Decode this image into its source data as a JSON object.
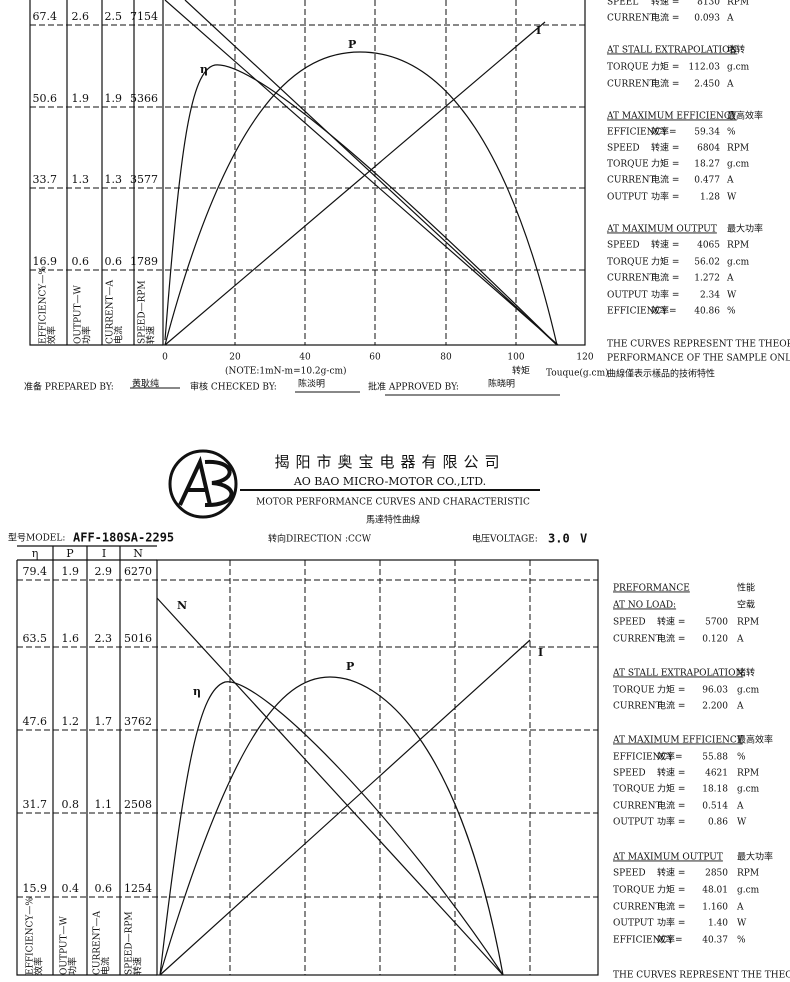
{
  "top_sheet": {
    "rows": [
      [
        "67.4",
        "2.6",
        "2.5",
        "7154"
      ],
      [
        "50.6",
        "1.9",
        "1.9",
        "5366"
      ],
      [
        "33.7",
        "1.3",
        "1.3",
        "3577"
      ],
      [
        "16.9",
        "0.6",
        "0.6",
        "1789"
      ]
    ],
    "axis_labels": [
      {
        "en": "EFFICIENCY—%",
        "cn": "效率"
      },
      {
        "en": "OUTPUT—W",
        "cn": "功率"
      },
      {
        "en": "CURRENT—A",
        "cn": "电流"
      },
      {
        "en": "SPEED—RPM",
        "cn": "转速"
      }
    ],
    "x_ticks": [
      "0",
      "20",
      "40",
      "60",
      "80",
      "100",
      "120"
    ],
    "note": "(NOTE:1mN-m=10.2g-cm)",
    "x_label_cn": "转矩",
    "x_label_en": "Touque(g.cm)",
    "curve_labels": [
      "η",
      "P",
      "I"
    ],
    "signatures": [
      {
        "role": "准备 PREPARED BY:",
        "name": "黄耿纯"
      },
      {
        "role": "审核 CHECKED BY:",
        "name": "陈淡明"
      },
      {
        "role": "批准 APPROVED BY:",
        "name": "陈晓明"
      }
    ],
    "panel": [
      {
        "label": "SPEEL",
        "cn": "转速 =",
        "value": "8130",
        "unit": "RPM"
      },
      {
        "label": "CURRENT",
        "cn": "电流 =",
        "value": "0.093",
        "unit": "A"
      },
      {
        "heading": "AT STALL EXTRAPOLATION",
        "heading_cn": "堵转"
      },
      {
        "label": "TORQUE",
        "cn": "力矩 =",
        "value": "112.03",
        "unit": "g.cm"
      },
      {
        "label": "CURRENT",
        "cn": "电流 =",
        "value": "2.450",
        "unit": "A"
      },
      {
        "heading": "AT MAXIMUM EFFICIENCY",
        "heading_cn": "最高效率"
      },
      {
        "label": "EFFICIENCY",
        "cn": "效率=",
        "value": "59.34",
        "unit": "%"
      },
      {
        "label": "SPEED",
        "cn": "转速 =",
        "value": "6804",
        "unit": "RPM"
      },
      {
        "label": "TORQUE",
        "cn": "力矩 =",
        "value": "18.27",
        "unit": "g.cm"
      },
      {
        "label": "CURRENT",
        "cn": "电流 =",
        "value": "0.477",
        "unit": "A"
      },
      {
        "label": "OUTPUT",
        "cn": "功率 =",
        "value": "1.28",
        "unit": "W"
      },
      {
        "heading": "AT MAXIMUM OUTPUT",
        "heading_cn": "最大功率"
      },
      {
        "label": "SPEED",
        "cn": "转速 =",
        "value": "4065",
        "unit": "RPM"
      },
      {
        "label": "TORQUE",
        "cn": "力矩 =",
        "value": "56.02",
        "unit": "g.cm"
      },
      {
        "label": "CURRENT",
        "cn": "电流 =",
        "value": "1.272",
        "unit": "A"
      },
      {
        "label": "OUTPUT",
        "cn": "功率 =",
        "value": "2.34",
        "unit": "W"
      },
      {
        "label": "EFFICIENCY",
        "cn": "效率=",
        "value": "40.86",
        "unit": "%"
      }
    ],
    "footnote": [
      "THE CURVES REPRESENT THE THEORETICAL",
      "PERFORMANCE OF THE SAMPLE ONLY.",
      "曲線僅表示樣品的技術特性"
    ]
  },
  "bottom_sheet": {
    "company_cn": "揭阳市奥宝电器有限公司",
    "company_en": "AO BAO MICRO-MOTOR CO.,LTD.",
    "doc_title": "MOTOR PERFORMANCE CURVES AND CHARACTERISTIC",
    "doc_title_cn": "馬達特性曲線",
    "model_label": "型号MODEL:",
    "model": "AFF-180SA-2295",
    "direction_label": "转向DIRECTION",
    "direction": ":CCW",
    "voltage_label": "电压VOLTAGE:",
    "voltage": "3.0",
    "voltage_unit": "V",
    "column_headers": [
      "η",
      "P",
      "I",
      "N"
    ],
    "rows": [
      [
        "79.4",
        "1.9",
        "2.9",
        "6270"
      ],
      [
        "63.5",
        "1.6",
        "2.3",
        "5016"
      ],
      [
        "47.6",
        "1.2",
        "1.7",
        "3762"
      ],
      [
        "31.7",
        "0.8",
        "1.1",
        "2508"
      ],
      [
        "15.9",
        "0.4",
        "0.6",
        "1254"
      ]
    ],
    "axis_labels": [
      {
        "en": "EFFICIENCY—%",
        "cn": "效率"
      },
      {
        "en": "OUTPUT—W",
        "cn": "功率"
      },
      {
        "en": "CURRENT—A",
        "cn": "电流"
      },
      {
        "en": "SPEED—RPM",
        "cn": "转速"
      }
    ],
    "curve_labels": [
      "N",
      "η",
      "P",
      "I"
    ],
    "panel": [
      {
        "heading": "PREFORMANCE",
        "heading_cn": "性能"
      },
      {
        "heading": "AT NO LOAD:",
        "heading_cn": "空载"
      },
      {
        "label": "SPEED",
        "cn": "转速 =",
        "value": "5700",
        "unit": "RPM"
      },
      {
        "label": "CURRENT",
        "cn": "电流 =",
        "value": "0.120",
        "unit": "A"
      },
      {
        "heading": "AT STALL EXTRAPOLATION",
        "heading_cn": "堵转"
      },
      {
        "label": "TORQUE",
        "cn": "力矩 =",
        "value": "96.03",
        "unit": "g.cm"
      },
      {
        "label": "CURRENT",
        "cn": "电流 =",
        "value": "2.200",
        "unit": "A"
      },
      {
        "heading": "AT MAXIMUM EFFICIENCY",
        "heading_cn": "最高效率"
      },
      {
        "label": "EFFICIENCY",
        "cn": "效率=",
        "value": "55.88",
        "unit": "%"
      },
      {
        "label": "SPEED",
        "cn": "转速 =",
        "value": "4621",
        "unit": "RPM"
      },
      {
        "label": "TORQUE",
        "cn": "力矩 =",
        "value": "18.18",
        "unit": "g.cm"
      },
      {
        "label": "CURRENT",
        "cn": "电流 =",
        "value": "0.514",
        "unit": "A"
      },
      {
        "label": "OUTPUT",
        "cn": "功率 =",
        "value": "0.86",
        "unit": "W"
      },
      {
        "heading": "AT MAXIMUM OUTPUT",
        "heading_cn": "最大功率"
      },
      {
        "label": "SPEED",
        "cn": "转速 =",
        "value": "2850",
        "unit": "RPM"
      },
      {
        "label": "TORQUE",
        "cn": "力矩 =",
        "value": "48.01",
        "unit": "g.cm"
      },
      {
        "label": "CURRENT",
        "cn": "电流 =",
        "value": "1.160",
        "unit": "A"
      },
      {
        "label": "OUTPUT",
        "cn": "功率 =",
        "value": "1.40",
        "unit": "W"
      },
      {
        "label": "EFFICIENCY",
        "cn": "效率=",
        "value": "40.37",
        "unit": "%"
      }
    ],
    "footnote": [
      "THE CURVES REPRESENT THE THEORETICAL"
    ]
  }
}
